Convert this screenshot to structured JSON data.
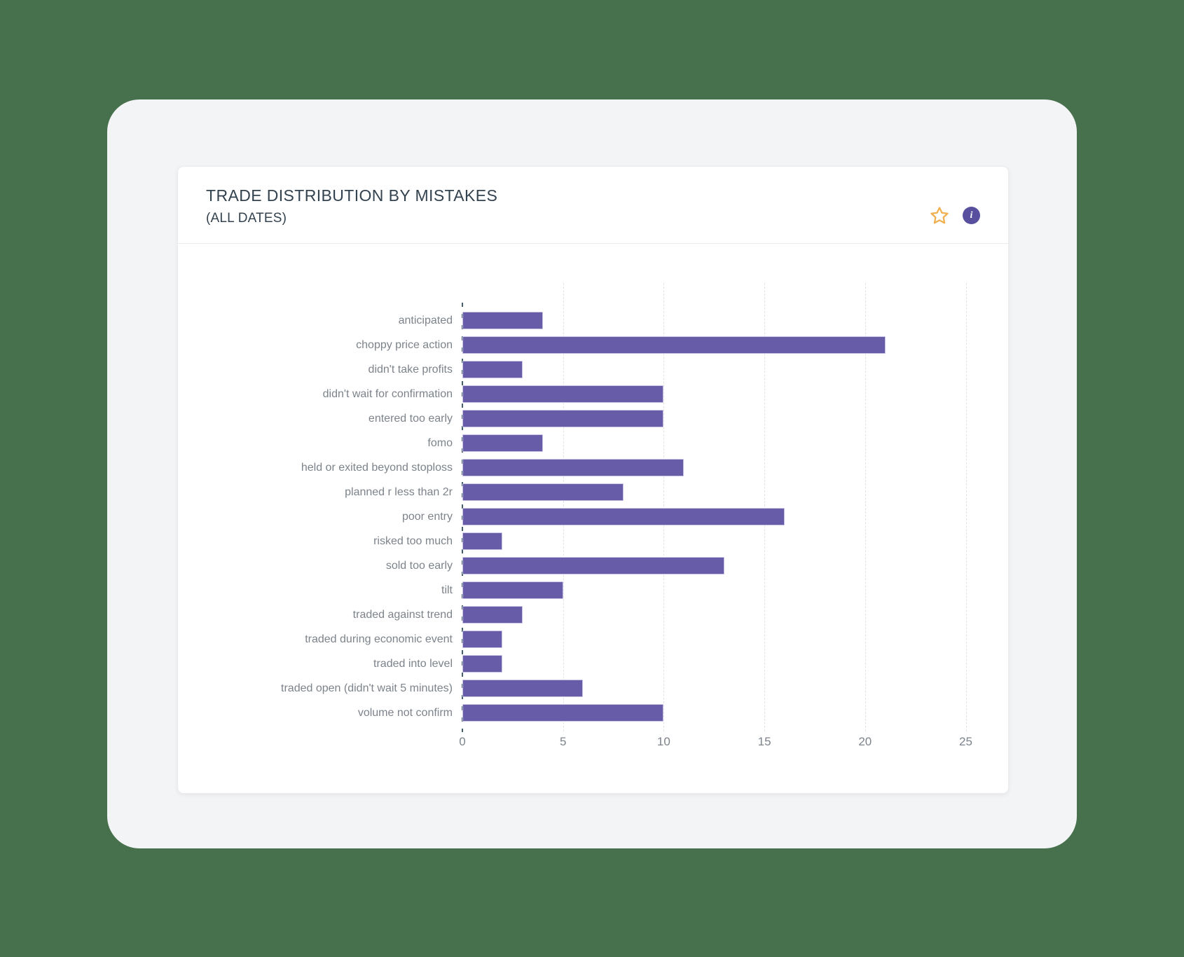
{
  "card": {
    "title": "TRADE DISTRIBUTION BY MISTAKES",
    "subtitle": "(ALL DATES)"
  },
  "toolbar": {
    "favorite_icon": "star-outline",
    "info_icon": "info-circle",
    "info_glyph": "i"
  },
  "colors": {
    "page_background": "#47704d",
    "frame_background": "#f3f4f6",
    "card_background": "#ffffff",
    "bar_fill": "#675ca7",
    "bar_border": "#c9c4e4",
    "axis_tick": "#46606b",
    "gridline": "#e2e3e6",
    "text_muted": "#7d838b",
    "title_text": "#33424f",
    "star": "#f1b04f",
    "info_badge": "#584f9e"
  },
  "chart_data": {
    "type": "bar",
    "orientation": "horizontal",
    "title": "TRADE DISTRIBUTION BY MISTAKES (ALL DATES)",
    "categories": [
      "anticipated",
      "choppy price action",
      "didn't take profits",
      "didn't wait for confirmation",
      "entered too early",
      "fomo",
      "held or exited beyond stoploss",
      "planned r less than 2r",
      "poor entry",
      "risked too much",
      "sold too early",
      "tilt",
      "traded against trend",
      "traded during economic event",
      "traded into level",
      "traded open (didn't wait 5 minutes)",
      "volume not confirm"
    ],
    "values": [
      4,
      21,
      3,
      10,
      10,
      4,
      11,
      8,
      16,
      2,
      13,
      5,
      3,
      2,
      2,
      6,
      10
    ],
    "xlabel": "",
    "ylabel": "",
    "xlim": [
      0,
      25
    ],
    "xticks": [
      0,
      5,
      10,
      15,
      20,
      25
    ],
    "grid": "vertical-dashed",
    "legend": "none"
  }
}
